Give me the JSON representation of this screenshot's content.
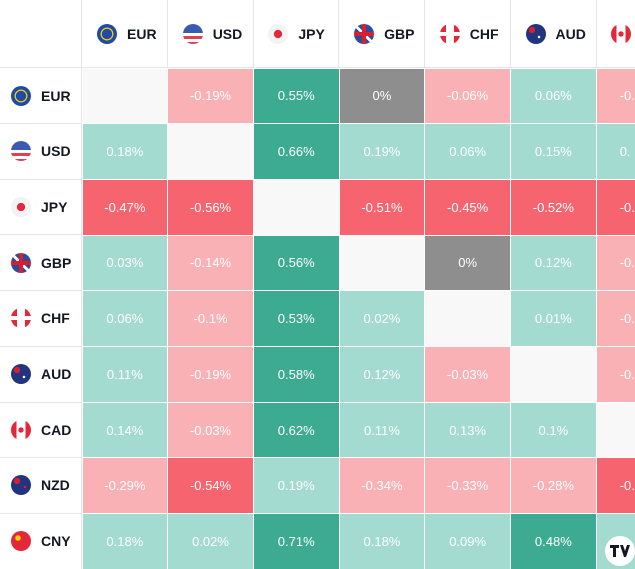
{
  "columns": [
    "EUR",
    "USD",
    "JPY",
    "GBP",
    "CHF",
    "AUD",
    null
  ],
  "rows": [
    {
      "label": "EUR",
      "cells": [
        null,
        {
          "text": "-0.19%",
          "color": "#f9b1b6"
        },
        {
          "text": "0.55%",
          "color": "#3dab91"
        },
        {
          "text": "0%",
          "color": "#8e8e8e"
        },
        {
          "text": "-0.06%",
          "color": "#f9b1b6"
        },
        {
          "text": "0.06%",
          "color": "#a3dbd1"
        },
        {
          "text": "-0.",
          "color": "#f9b1b6"
        }
      ]
    },
    {
      "label": "USD",
      "cells": [
        {
          "text": "0.18%",
          "color": "#a3dbd1"
        },
        null,
        {
          "text": "0.66%",
          "color": "#3dab91"
        },
        {
          "text": "0.19%",
          "color": "#a3dbd1"
        },
        {
          "text": "0.06%",
          "color": "#a3dbd1"
        },
        {
          "text": "0.15%",
          "color": "#a3dbd1"
        },
        {
          "text": "0.",
          "color": "#a3dbd1"
        }
      ]
    },
    {
      "label": "JPY",
      "cells": [
        {
          "text": "-0.47%",
          "color": "#f6646f"
        },
        {
          "text": "-0.56%",
          "color": "#f6646f"
        },
        null,
        {
          "text": "-0.51%",
          "color": "#f6646f"
        },
        {
          "text": "-0.45%",
          "color": "#f6646f"
        },
        {
          "text": "-0.52%",
          "color": "#f6646f"
        },
        {
          "text": "-0.",
          "color": "#f6646f"
        }
      ]
    },
    {
      "label": "GBP",
      "cells": [
        {
          "text": "0.03%",
          "color": "#a3dbd1"
        },
        {
          "text": "-0.14%",
          "color": "#f9b1b6"
        },
        {
          "text": "0.56%",
          "color": "#3dab91"
        },
        null,
        {
          "text": "0%",
          "color": "#8e8e8e"
        },
        {
          "text": "0.12%",
          "color": "#a3dbd1"
        },
        {
          "text": "-0.",
          "color": "#f9b1b6"
        }
      ]
    },
    {
      "label": "CHF",
      "cells": [
        {
          "text": "0.06%",
          "color": "#a3dbd1"
        },
        {
          "text": "-0.1%",
          "color": "#f9b1b6"
        },
        {
          "text": "0.53%",
          "color": "#3dab91"
        },
        {
          "text": "0.02%",
          "color": "#a3dbd1"
        },
        null,
        {
          "text": "0.01%",
          "color": "#a3dbd1"
        },
        {
          "text": "-0.",
          "color": "#f9b1b6"
        }
      ]
    },
    {
      "label": "AUD",
      "cells": [
        {
          "text": "0.11%",
          "color": "#a3dbd1"
        },
        {
          "text": "-0.19%",
          "color": "#f9b1b6"
        },
        {
          "text": "0.58%",
          "color": "#3dab91"
        },
        {
          "text": "0.12%",
          "color": "#a3dbd1"
        },
        {
          "text": "-0.03%",
          "color": "#f9b1b6"
        },
        null,
        {
          "text": "-0.",
          "color": "#f9b1b6"
        }
      ]
    },
    {
      "label": "CAD",
      "cells": [
        {
          "text": "0.14%",
          "color": "#a3dbd1"
        },
        {
          "text": "-0.03%",
          "color": "#f9b1b6"
        },
        {
          "text": "0.62%",
          "color": "#3dab91"
        },
        {
          "text": "0.11%",
          "color": "#a3dbd1"
        },
        {
          "text": "0.13%",
          "color": "#a3dbd1"
        },
        {
          "text": "0.1%",
          "color": "#a3dbd1"
        },
        null
      ]
    },
    {
      "label": "NZD",
      "cells": [
        {
          "text": "-0.29%",
          "color": "#f9b1b6"
        },
        {
          "text": "-0.54%",
          "color": "#f6646f"
        },
        {
          "text": "0.19%",
          "color": "#a3dbd1"
        },
        {
          "text": "-0.34%",
          "color": "#f9b1b6"
        },
        {
          "text": "-0.33%",
          "color": "#f9b1b6"
        },
        {
          "text": "-0.28%",
          "color": "#f9b1b6"
        },
        {
          "text": "-0.",
          "color": "#f6646f"
        }
      ]
    },
    {
      "label": "CNY",
      "cells": [
        {
          "text": "0.18%",
          "color": "#a3dbd1"
        },
        {
          "text": "0.02%",
          "color": "#a3dbd1"
        },
        {
          "text": "0.71%",
          "color": "#3dab91"
        },
        {
          "text": "0.18%",
          "color": "#a3dbd1"
        },
        {
          "text": "0.09%",
          "color": "#a3dbd1"
        },
        {
          "text": "0.48%",
          "color": "#3dab91"
        },
        {
          "color": "#a3dbd1"
        }
      ]
    }
  ]
}
